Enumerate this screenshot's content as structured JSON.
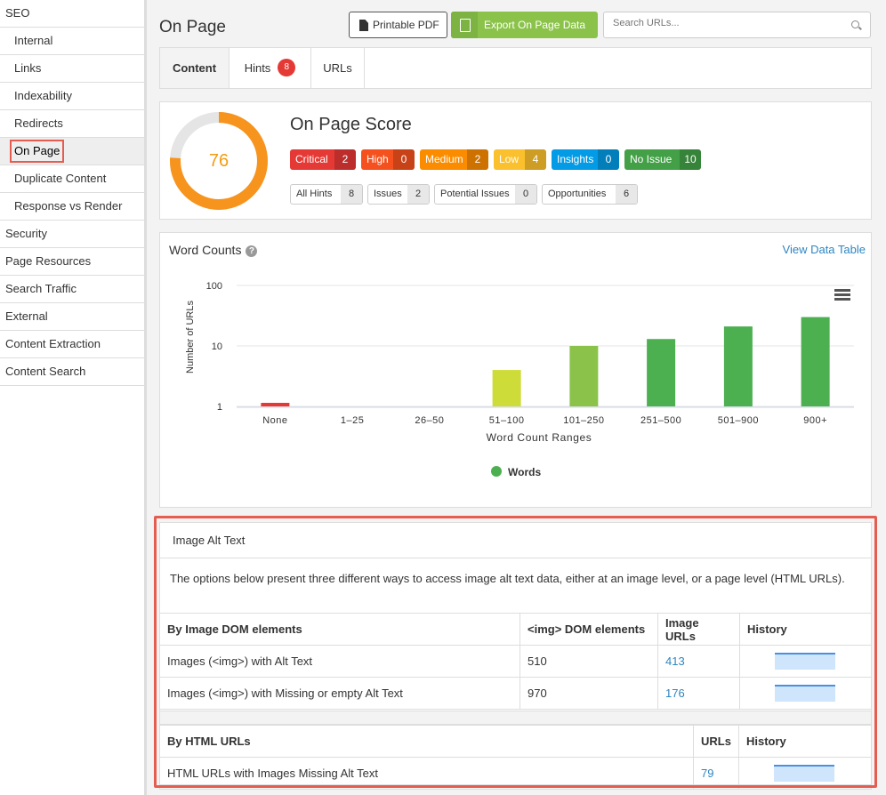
{
  "sidebar": {
    "items": [
      {
        "label": "SEO",
        "type": "top",
        "bar": "#4caf50"
      },
      {
        "label": "Internal",
        "type": "sub",
        "bar": "#4caf50"
      },
      {
        "label": "Links",
        "type": "sub",
        "bar": "#4caf50"
      },
      {
        "label": "Indexability",
        "type": "sub",
        "bar": "#ff9800"
      },
      {
        "label": "Redirects",
        "type": "sub",
        "bar": "#4caf50"
      },
      {
        "label": "On Page",
        "type": "sub-selected",
        "bar": "#ff9800"
      },
      {
        "label": "Duplicate Content",
        "type": "sub",
        "bar": "#4caf50"
      },
      {
        "label": "Response vs Render",
        "type": "sub",
        "bar": ""
      },
      {
        "label": "Security",
        "type": "top",
        "bar": "#ff9800"
      },
      {
        "label": "Page Resources",
        "type": "top",
        "bar": ""
      },
      {
        "label": "Search Traffic",
        "type": "top",
        "bar": "#ff9800"
      },
      {
        "label": "External",
        "type": "top",
        "bar": ""
      },
      {
        "label": "Content Extraction",
        "type": "top",
        "bar": ""
      },
      {
        "label": "Content Search",
        "type": "top",
        "bar": ""
      }
    ]
  },
  "header": {
    "title": "On Page",
    "pdf_label": "Printable PDF",
    "export_label": "Export On Page Data",
    "search_placeholder": "Search URLs..."
  },
  "tabs": [
    {
      "label": "Content",
      "active": true
    },
    {
      "label": "Hints",
      "badge": "8"
    },
    {
      "label": "URLs"
    }
  ],
  "score": {
    "value": "76",
    "fraction": 0.76,
    "title": "On Page Score",
    "pills": [
      {
        "label": "Critical",
        "count": "2",
        "color": "#e53935"
      },
      {
        "label": "High",
        "count": "0",
        "color": "#f4511e"
      },
      {
        "label": "Medium",
        "count": "2",
        "color": "#fb8c00"
      },
      {
        "label": "Low",
        "count": "4",
        "color": "#fbc02d"
      },
      {
        "label": "Insights",
        "count": "0",
        "color": "#039be5"
      },
      {
        "label": "No Issue",
        "count": "10",
        "color": "#43a047"
      }
    ],
    "hints": [
      {
        "label": "All Hints",
        "count": "8"
      },
      {
        "label": "Issues",
        "count": "2"
      },
      {
        "label": "Potential Issues",
        "count": "0"
      },
      {
        "label": "Opportunities",
        "count": "6"
      }
    ]
  },
  "word_counts": {
    "title": "Word Counts",
    "help_icon": "question-circle-icon",
    "view_link": "View Data Table"
  },
  "chart_data": {
    "type": "bar",
    "title": "Word Counts",
    "xlabel": "Word Count Ranges",
    "ylabel": "Number of URLs",
    "y_scale": "log",
    "ylim": [
      1,
      100
    ],
    "y_ticks": [
      "1",
      "10",
      "100"
    ],
    "categories": [
      "None",
      "1–25",
      "26–50",
      "51–100",
      "101–250",
      "251–500",
      "501–900",
      "900+"
    ],
    "series": [
      {
        "name": "Words",
        "values": [
          1,
          0,
          0,
          4,
          10,
          13,
          21,
          30
        ]
      }
    ],
    "bar_colors": [
      "#e53935",
      "#8bc34a",
      "#8bc34a",
      "#cddc39",
      "#8bc34a",
      "#4caf50",
      "#4caf50",
      "#4caf50"
    ],
    "legend_color": "#4caf50",
    "legend_position": "bottom-center"
  },
  "alt_text": {
    "title": "Image Alt Text",
    "description": "The options below present three different ways to access image alt text data, either at an image level, or a page level (HTML URLs).",
    "table1": {
      "headers": [
        "By Image DOM elements",
        "<img> DOM elements",
        "Image URLs",
        "History"
      ],
      "rows": [
        {
          "label": "Images (<img>) with Alt Text",
          "dom": "510",
          "urls": "413"
        },
        {
          "label": "Images (<img>) with Missing or empty Alt Text",
          "dom": "970",
          "urls": "176"
        }
      ]
    },
    "table2": {
      "headers": [
        "By HTML URLs",
        "URLs",
        "History"
      ],
      "rows": [
        {
          "label": "HTML URLs with Images Missing Alt Text",
          "urls": "79"
        }
      ]
    }
  }
}
